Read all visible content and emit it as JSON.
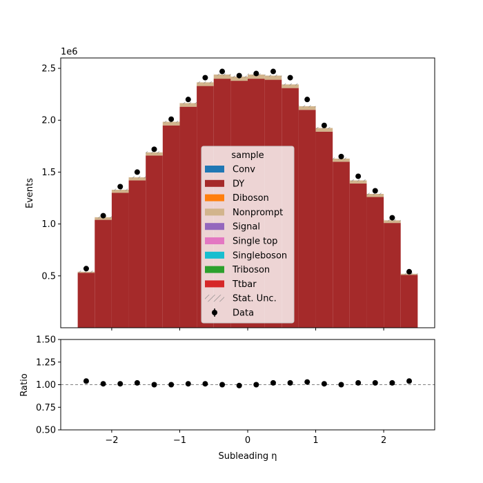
{
  "chart_data": {
    "type": "bar",
    "stacked": true,
    "x": [
      -2.375,
      -2.125,
      -1.875,
      -1.625,
      -1.375,
      -1.125,
      -0.875,
      -0.625,
      -0.375,
      -0.125,
      0.125,
      0.375,
      0.625,
      0.875,
      1.125,
      1.375,
      1.625,
      1.875,
      2.125,
      2.375
    ],
    "bin_edges": [
      -2.5,
      -2.25,
      -2.0,
      -1.75,
      -1.5,
      -1.25,
      -1.0,
      -0.75,
      -0.5,
      -0.25,
      0.0,
      0.25,
      0.5,
      0.75,
      1.0,
      1.25,
      1.5,
      1.75,
      2.0,
      2.25,
      2.5
    ],
    "series": [
      {
        "name": "DY",
        "color": "#a52a2a",
        "values": [
          0.53,
          1.04,
          1.3,
          1.42,
          1.66,
          1.95,
          2.13,
          2.33,
          2.4,
          2.38,
          2.4,
          2.39,
          2.31,
          2.1,
          1.89,
          1.6,
          1.39,
          1.26,
          1.01,
          0.51
        ]
      },
      {
        "name": "Nonprompt",
        "color": "#d2b48c",
        "values": [
          0.01,
          0.025,
          0.03,
          0.03,
          0.03,
          0.035,
          0.035,
          0.035,
          0.04,
          0.04,
          0.04,
          0.04,
          0.035,
          0.035,
          0.035,
          0.03,
          0.03,
          0.03,
          0.025,
          0.01
        ]
      }
    ],
    "data_points": {
      "name": "Data",
      "values": [
        0.57,
        1.08,
        1.36,
        1.5,
        1.72,
        2.01,
        2.2,
        2.41,
        2.47,
        2.43,
        2.45,
        2.47,
        2.41,
        2.2,
        1.95,
        1.65,
        1.46,
        1.32,
        1.06,
        0.54
      ]
    },
    "ratio": {
      "values": [
        1.04,
        1.01,
        1.01,
        1.02,
        1.0,
        1.0,
        1.01,
        1.01,
        1.0,
        0.99,
        1.0,
        1.02,
        1.02,
        1.03,
        1.01,
        1.0,
        1.02,
        1.02,
        1.02,
        1.04
      ],
      "reference_line": 1.0,
      "ylim": [
        0.5,
        1.5
      ],
      "yticks": [
        "0.50",
        "0.75",
        "1.00",
        "1.25",
        "1.50"
      ],
      "ylabel": "Ratio"
    },
    "xlim": [
      -2.75,
      2.75
    ],
    "xticks": [
      "−2",
      "−1",
      "0",
      "1",
      "2"
    ],
    "xtick_values": [
      -2,
      -1,
      0,
      1,
      2
    ],
    "ylim": [
      0,
      2.6
    ],
    "yticks": [
      "0.5",
      "1.0",
      "1.5",
      "2.0",
      "2.5"
    ],
    "ytick_values": [
      0.5,
      1.0,
      1.5,
      2.0,
      2.5
    ],
    "y_scale_label": "1e6",
    "ylabel": "Events",
    "xlabel": "Subleading η",
    "grid": false,
    "legend": {
      "title": "sample",
      "placement": "center",
      "entries": [
        {
          "label": "Conv",
          "color": "#1f77b4",
          "kind": "patch"
        },
        {
          "label": "DY",
          "color": "#a52a2a",
          "kind": "patch"
        },
        {
          "label": "Diboson",
          "color": "#ff7f0e",
          "kind": "patch"
        },
        {
          "label": "Nonprompt",
          "color": "#d2b48c",
          "kind": "patch"
        },
        {
          "label": "Signal",
          "color": "#9467bd",
          "kind": "patch"
        },
        {
          "label": "Single top",
          "color": "#e377c2",
          "kind": "patch"
        },
        {
          "label": "Singleboson",
          "color": "#17becf",
          "kind": "patch"
        },
        {
          "label": "Triboson",
          "color": "#2ca02c",
          "kind": "patch"
        },
        {
          "label": "Ttbar",
          "color": "#d62728",
          "kind": "patch"
        },
        {
          "label": "Stat. Unc.",
          "color": "#808080",
          "kind": "hatch"
        },
        {
          "label": "Data",
          "color": "#000000",
          "kind": "errorbar"
        }
      ]
    }
  }
}
